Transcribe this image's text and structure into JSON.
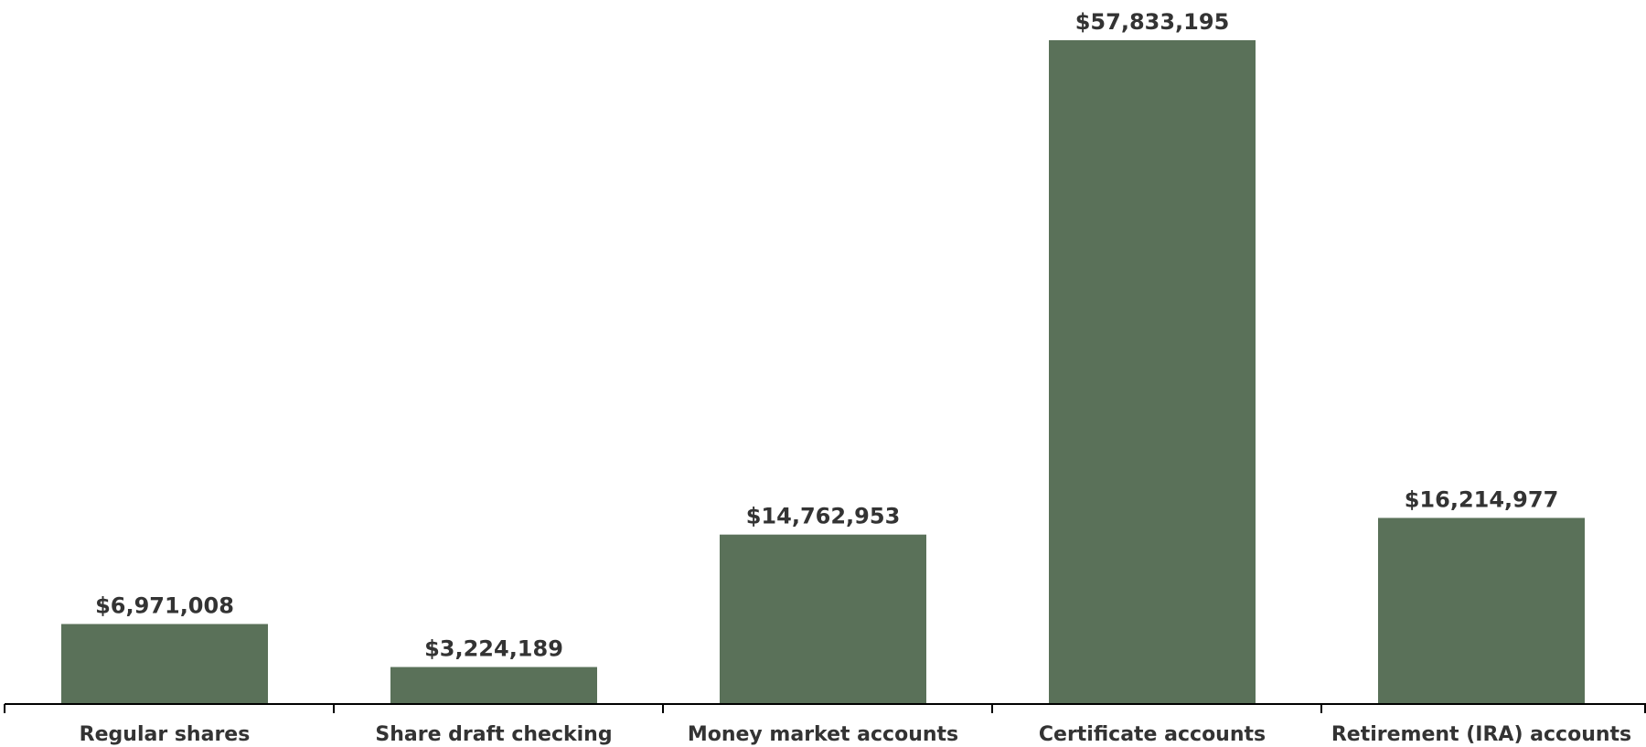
{
  "chart_data": {
    "type": "bar",
    "categories": [
      "Regular shares",
      "Share draft checking",
      "Money market accounts",
      "Certificate accounts",
      "Retirement (IRA) accounts"
    ],
    "values": [
      6971008,
      3224189,
      14762953,
      57833195,
      16214977
    ],
    "value_labels": [
      "$6,971,008",
      "$3,224,189",
      "$14,762,953",
      "$57,833,195",
      "$16,214,977"
    ],
    "title": "",
    "xlabel": "",
    "ylabel": "",
    "ylim": [
      0,
      57833195
    ],
    "grid": false,
    "legend": "none",
    "colors": {
      "bar": "#5a7159",
      "text": "#333333",
      "axis": "#000000"
    }
  }
}
